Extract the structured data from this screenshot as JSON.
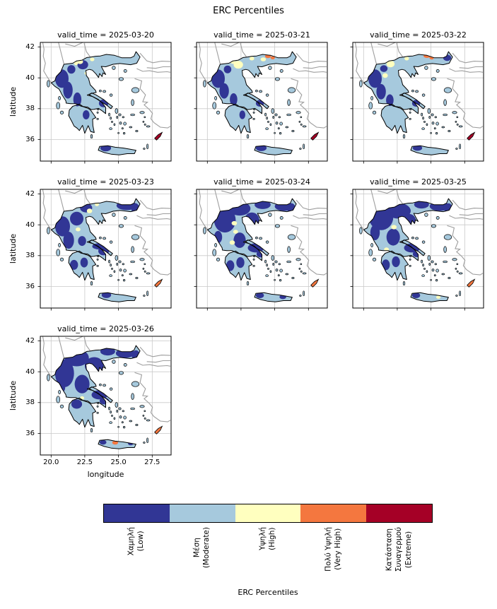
{
  "figure": {
    "title": "ERC Percentiles",
    "xlabel": "longitude",
    "ylabel": "latitude",
    "colorbar_title": "ERC Percentiles"
  },
  "chart_data": {
    "type": "heatmap",
    "subtype": "faceted_choropleth_map",
    "region": "Greece",
    "facet_variable": "valid_time",
    "title": "ERC Percentiles",
    "colorbar_label": "ERC Percentiles",
    "legend_position": "bottom",
    "grid": true,
    "x": {
      "label": "longitude",
      "ticks": [
        "20.0",
        "22.5",
        "25.0",
        "27.5"
      ],
      "tick_values": [
        20,
        22.5,
        25,
        27.5
      ],
      "range": [
        19.2,
        28.9
      ]
    },
    "y": {
      "label": "latitude",
      "ticks": [
        "42",
        "40",
        "38",
        "36"
      ],
      "tick_values": [
        42,
        40,
        38,
        36
      ],
      "range": [
        34.6,
        42.3
      ]
    },
    "categories": [
      {
        "value": "low",
        "lines": [
          "Χαμηλή",
          "(Low)"
        ],
        "color": "#313695"
      },
      {
        "value": "moderate",
        "lines": [
          "Μέση",
          "(Moderate)"
        ],
        "color": "#a6c9dd"
      },
      {
        "value": "high",
        "lines": [
          "Υψηλή",
          "(High)"
        ],
        "color": "#ffffbf"
      },
      {
        "value": "very_high",
        "lines": [
          "Πολύ Υψηλή",
          "(Very High)"
        ],
        "color": "#f4773f"
      },
      {
        "value": "extreme",
        "lines": [
          "Κατάσταση",
          "Συναγερμού",
          "(Extreme)"
        ],
        "color": "#a50026"
      }
    ],
    "facets": [
      {
        "title": "valid_time = 2025-03-20",
        "date": "2025-03-20",
        "rhodes_category": 4,
        "patches": [
          [
            0,
            20.8,
            39.95,
            0.5,
            0.6
          ],
          [
            0,
            21.25,
            39.2,
            0.35,
            0.55
          ],
          [
            0,
            21.95,
            38.6,
            0.3,
            0.45
          ],
          [
            0,
            22.35,
            40.85,
            0.4,
            0.3
          ],
          [
            0,
            21.5,
            40.55,
            0.3,
            0.28
          ],
          [
            0,
            23.9,
            38.35,
            0.35,
            0.25
          ],
          [
            0,
            22.6,
            37.6,
            0.25,
            0.3
          ],
          [
            0,
            24.05,
            35.45,
            0.4,
            0.22
          ],
          [
            2,
            22.15,
            41.05,
            0.22,
            0.15
          ],
          [
            2,
            21.85,
            40.95,
            0.15,
            0.12
          ],
          [
            2,
            23.05,
            41.2,
            0.16,
            0.12
          ],
          [
            2,
            22.6,
            40.3,
            0.12,
            0.1
          ]
        ]
      },
      {
        "title": "valid_time = 2025-03-21",
        "date": "2025-03-21",
        "rhodes_category": 4,
        "patches": [
          [
            0,
            20.8,
            39.95,
            0.5,
            0.6
          ],
          [
            0,
            21.25,
            39.15,
            0.35,
            0.5
          ],
          [
            0,
            21.95,
            38.6,
            0.28,
            0.4
          ],
          [
            0,
            21.5,
            40.55,
            0.28,
            0.25
          ],
          [
            0,
            23.9,
            38.35,
            0.3,
            0.22
          ],
          [
            0,
            24.0,
            35.45,
            0.4,
            0.2
          ],
          [
            0,
            22.6,
            37.6,
            0.22,
            0.28
          ],
          [
            2,
            22.3,
            40.85,
            0.35,
            0.25
          ],
          [
            2,
            21.9,
            41.05,
            0.2,
            0.14
          ],
          [
            2,
            23.3,
            41.25,
            0.18,
            0.12
          ],
          [
            2,
            24.15,
            41.2,
            0.2,
            0.13
          ],
          [
            3,
            24.5,
            41.4,
            0.22,
            0.12
          ],
          [
            3,
            24.85,
            41.3,
            0.16,
            0.1
          ]
        ]
      },
      {
        "title": "valid_time = 2025-03-22",
        "date": "2025-03-22",
        "rhodes_category": 4,
        "patches": [
          [
            0,
            20.85,
            39.95,
            0.5,
            0.6
          ],
          [
            0,
            21.3,
            39.1,
            0.35,
            0.5
          ],
          [
            0,
            21.95,
            38.55,
            0.28,
            0.38
          ],
          [
            0,
            21.5,
            40.6,
            0.28,
            0.22
          ],
          [
            0,
            23.9,
            38.35,
            0.3,
            0.22
          ],
          [
            0,
            26.2,
            41.3,
            0.3,
            0.2
          ],
          [
            0,
            24.0,
            35.45,
            0.35,
            0.18
          ],
          [
            2,
            22.0,
            40.9,
            0.3,
            0.22
          ],
          [
            2,
            21.6,
            40.15,
            0.2,
            0.15
          ],
          [
            2,
            23.2,
            41.25,
            0.17,
            0.12
          ],
          [
            3,
            24.7,
            41.42,
            0.25,
            0.13
          ],
          [
            3,
            25.05,
            41.3,
            0.17,
            0.11
          ]
        ]
      },
      {
        "title": "valid_time = 2025-03-23",
        "date": "2025-03-23",
        "rhodes_category": 3,
        "patches": [
          [
            0,
            20.85,
            39.9,
            0.55,
            0.65
          ],
          [
            0,
            21.3,
            39.0,
            0.4,
            0.55
          ],
          [
            0,
            21.9,
            40.4,
            0.5,
            0.45
          ],
          [
            0,
            22.6,
            41.1,
            0.45,
            0.3
          ],
          [
            0,
            25.6,
            41.25,
            0.75,
            0.3
          ],
          [
            0,
            26.25,
            41.05,
            0.3,
            0.35
          ],
          [
            0,
            23.9,
            38.3,
            0.4,
            0.28
          ],
          [
            0,
            23.55,
            38.6,
            0.5,
            0.2
          ],
          [
            0,
            21.7,
            37.4,
            0.3,
            0.32
          ],
          [
            0,
            22.45,
            37.55,
            0.28,
            0.32
          ],
          [
            0,
            22.3,
            38.95,
            0.3,
            0.32
          ],
          [
            0,
            24.1,
            35.45,
            0.35,
            0.2
          ],
          [
            2,
            22.85,
            40.9,
            0.2,
            0.15
          ],
          [
            2,
            23.4,
            41.32,
            0.15,
            0.11
          ],
          [
            2,
            22.0,
            39.7,
            0.18,
            0.13
          ]
        ]
      },
      {
        "title": "valid_time = 2025-03-24",
        "date": "2025-03-24",
        "rhodes_category": 3,
        "patches": [
          [
            0,
            21.3,
            40.3,
            0.8,
            0.8
          ],
          [
            0,
            22.4,
            41.05,
            0.8,
            0.45
          ],
          [
            0,
            23.3,
            40.3,
            0.55,
            0.5
          ],
          [
            0,
            24.1,
            41.3,
            0.6,
            0.28
          ],
          [
            0,
            25.7,
            41.2,
            0.7,
            0.3
          ],
          [
            0,
            26.25,
            41.0,
            0.3,
            0.4
          ],
          [
            0,
            22.4,
            39.0,
            0.45,
            0.5
          ],
          [
            0,
            23.6,
            38.5,
            0.6,
            0.3
          ],
          [
            0,
            23.95,
            38.1,
            0.3,
            0.22
          ],
          [
            0,
            21.7,
            37.35,
            0.3,
            0.35
          ],
          [
            0,
            22.45,
            37.55,
            0.3,
            0.35
          ],
          [
            0,
            20.8,
            39.2,
            0.3,
            0.4
          ],
          [
            0,
            23.9,
            35.42,
            0.3,
            0.18
          ],
          [
            0,
            25.6,
            35.32,
            0.25,
            0.14
          ],
          [
            2,
            21.85,
            38.85,
            0.2,
            0.14
          ],
          [
            2,
            22.1,
            39.55,
            0.18,
            0.13
          ],
          [
            2,
            21.6,
            38.25,
            0.15,
            0.11
          ],
          [
            2,
            22.0,
            40.1,
            0.2,
            0.14
          ]
        ]
      },
      {
        "title": "valid_time = 2025-03-25",
        "date": "2025-03-25",
        "rhodes_category": 3,
        "patches": [
          [
            0,
            21.3,
            40.5,
            0.9,
            0.85
          ],
          [
            0,
            22.6,
            40.9,
            0.9,
            0.5
          ],
          [
            0,
            23.4,
            40.2,
            0.5,
            0.5
          ],
          [
            0,
            24.3,
            41.32,
            0.55,
            0.26
          ],
          [
            0,
            25.65,
            41.2,
            0.75,
            0.3
          ],
          [
            0,
            26.3,
            41.0,
            0.3,
            0.4
          ],
          [
            0,
            22.2,
            39.2,
            0.5,
            0.55
          ],
          [
            0,
            23.6,
            38.5,
            0.6,
            0.3
          ],
          [
            0,
            23.95,
            38.1,
            0.3,
            0.2
          ],
          [
            0,
            21.65,
            37.4,
            0.3,
            0.35
          ],
          [
            0,
            22.4,
            37.6,
            0.3,
            0.35
          ],
          [
            0,
            20.85,
            39.5,
            0.35,
            0.5
          ],
          [
            0,
            23.9,
            35.42,
            0.3,
            0.18
          ],
          [
            2,
            21.7,
            38.4,
            0.18,
            0.13
          ],
          [
            2,
            22.25,
            39.85,
            0.2,
            0.14
          ],
          [
            2,
            25.55,
            35.3,
            0.16,
            0.1
          ]
        ]
      },
      {
        "title": "valid_time = 2025-03-26",
        "date": "2025-03-26",
        "rhodes_category": 3,
        "patches": [
          [
            0,
            21.0,
            39.9,
            0.7,
            0.9
          ],
          [
            0,
            21.9,
            40.9,
            0.9,
            0.55
          ],
          [
            0,
            23.2,
            40.4,
            0.7,
            0.55
          ],
          [
            0,
            24.2,
            41.32,
            0.55,
            0.26
          ],
          [
            0,
            25.5,
            41.2,
            0.7,
            0.3
          ],
          [
            0,
            26.3,
            41.0,
            0.3,
            0.4
          ],
          [
            0,
            22.3,
            39.2,
            0.55,
            0.6
          ],
          [
            0,
            23.6,
            38.5,
            0.6,
            0.3
          ],
          [
            0,
            23.95,
            38.1,
            0.35,
            0.22
          ],
          [
            0,
            21.9,
            37.9,
            0.4,
            0.3
          ],
          [
            0,
            20.8,
            39.0,
            0.25,
            0.35
          ],
          [
            0,
            23.85,
            35.42,
            0.25,
            0.15
          ],
          [
            0,
            25.9,
            35.35,
            0.2,
            0.12
          ],
          [
            2,
            22.3,
            38.3,
            0.15,
            0.11
          ],
          [
            3,
            24.75,
            35.4,
            0.22,
            0.13
          ]
        ]
      }
    ]
  }
}
